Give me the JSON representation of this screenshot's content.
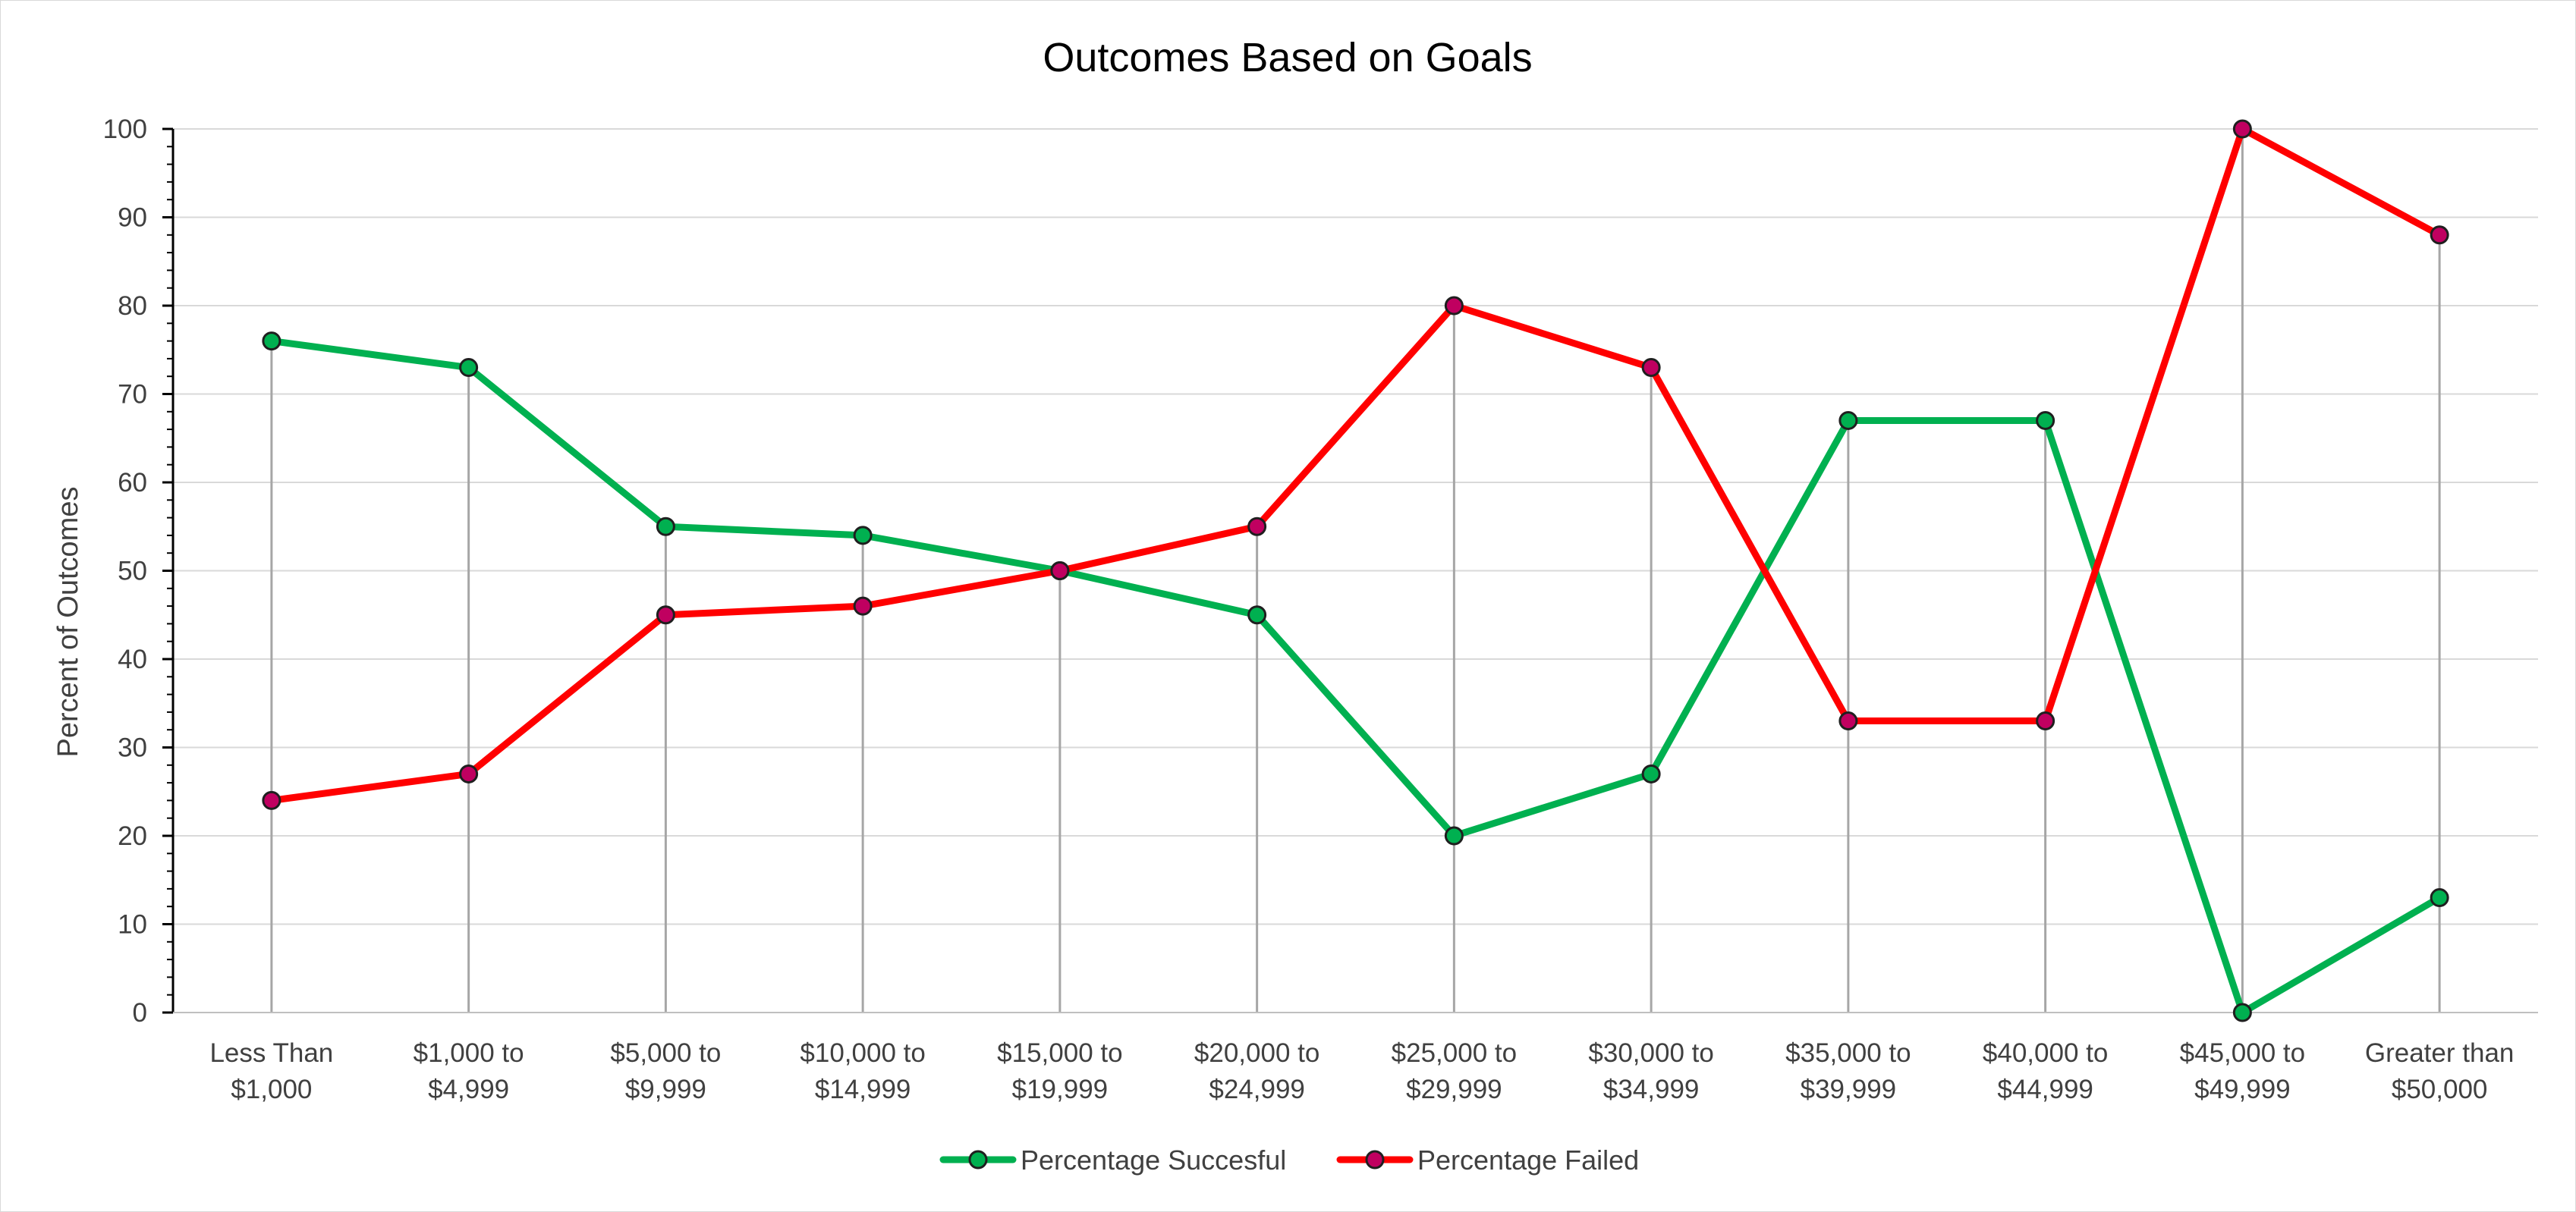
{
  "chart_data": {
    "type": "line",
    "title": "Outcomes Based on Goals",
    "xlabel": "",
    "ylabel": "Percent of Outcomes",
    "ylim": [
      0,
      100
    ],
    "ytick_step": 10,
    "grid": true,
    "drop_lines": true,
    "legend_position": "bottom",
    "categories": [
      [
        "Less Than",
        "$1,000"
      ],
      [
        "$1,000 to",
        "$4,999"
      ],
      [
        "$5,000 to",
        "$9,999"
      ],
      [
        "$10,000 to",
        "$14,999"
      ],
      [
        "$15,000 to",
        "$19,999"
      ],
      [
        "$20,000 to",
        "$24,999"
      ],
      [
        "$25,000 to",
        "$29,999"
      ],
      [
        "$30,000 to",
        "$34,999"
      ],
      [
        "$35,000 to",
        "$39,999"
      ],
      [
        "$40,000 to",
        "$44,999"
      ],
      [
        "$45,000 to",
        "$49,999"
      ],
      [
        "Greater than",
        "$50,000"
      ]
    ],
    "series": [
      {
        "name": "Percentage Succesful",
        "color": "#00b050",
        "marker_color": "#00b050",
        "values": [
          76,
          73,
          55,
          54,
          50,
          45,
          20,
          27,
          67,
          67,
          0,
          13
        ]
      },
      {
        "name": "Percentage Failed",
        "color": "#ff0000",
        "marker_color": "#c00060",
        "values": [
          24,
          27,
          45,
          46,
          50,
          55,
          80,
          73,
          33,
          33,
          100,
          88
        ]
      }
    ]
  }
}
